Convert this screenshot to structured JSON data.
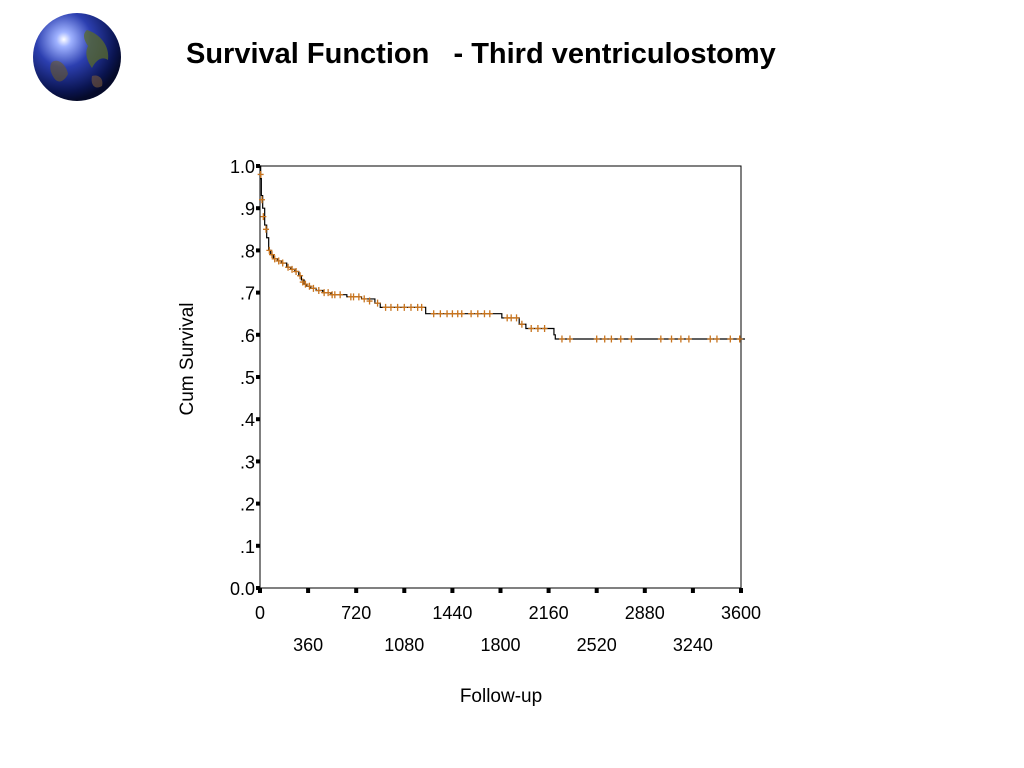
{
  "slide": {
    "title": "Survival Function   - Third ventriculostomy",
    "logo_icon": "globe-icon"
  },
  "chart_data": {
    "type": "line",
    "title": "Survival Function   - Third ventriculostomy",
    "xlabel": "Follow-up",
    "ylabel": "Cum Survival",
    "xlim": [
      0,
      3600
    ],
    "ylim": [
      0,
      1.0
    ],
    "x_ticks": [
      0,
      360,
      720,
      1080,
      1440,
      1800,
      2160,
      2520,
      2880,
      3240,
      3600
    ],
    "x_tick_labels": [
      "0",
      "360",
      "720",
      "1080",
      "1440",
      "1800",
      "2160",
      "2520",
      "2880",
      "3240",
      "3600"
    ],
    "y_ticks": [
      0,
      0.1,
      0.2,
      0.3,
      0.4,
      0.5,
      0.6,
      0.7,
      0.8,
      0.9,
      1.0
    ],
    "y_tick_labels": [
      "0.0",
      ".1",
      ".2",
      ".3",
      ".4",
      ".5",
      ".6",
      ".7",
      ".8",
      ".9",
      "1.0"
    ],
    "grid": false,
    "line_color": "#000000",
    "censor_color": "#c8741e",
    "series": [
      {
        "step_points": [
          [
            0,
            1.0
          ],
          [
            5,
            0.97
          ],
          [
            10,
            0.93
          ],
          [
            20,
            0.9
          ],
          [
            35,
            0.86
          ],
          [
            50,
            0.83
          ],
          [
            65,
            0.8
          ],
          [
            80,
            0.79
          ],
          [
            100,
            0.78
          ],
          [
            130,
            0.775
          ],
          [
            160,
            0.77
          ],
          [
            200,
            0.76
          ],
          [
            230,
            0.755
          ],
          [
            260,
            0.75
          ],
          [
            290,
            0.74
          ],
          [
            310,
            0.73
          ],
          [
            330,
            0.72
          ],
          [
            350,
            0.715
          ],
          [
            380,
            0.71
          ],
          [
            420,
            0.705
          ],
          [
            470,
            0.7
          ],
          [
            530,
            0.695
          ],
          [
            650,
            0.69
          ],
          [
            760,
            0.685
          ],
          [
            860,
            0.675
          ],
          [
            900,
            0.665
          ],
          [
            1240,
            0.65
          ],
          [
            1810,
            0.64
          ],
          [
            1940,
            0.625
          ],
          [
            1990,
            0.615
          ],
          [
            2200,
            0.6
          ],
          [
            2210,
            0.59
          ],
          [
            3630,
            0.59
          ]
        ],
        "censored": [
          [
            5,
            0.98
          ],
          [
            15,
            0.92
          ],
          [
            25,
            0.88
          ],
          [
            45,
            0.85
          ],
          [
            70,
            0.8
          ],
          [
            90,
            0.79
          ],
          [
            110,
            0.78
          ],
          [
            140,
            0.775
          ],
          [
            170,
            0.77
          ],
          [
            210,
            0.76
          ],
          [
            240,
            0.755
          ],
          [
            270,
            0.75
          ],
          [
            300,
            0.74
          ],
          [
            320,
            0.725
          ],
          [
            340,
            0.72
          ],
          [
            370,
            0.715
          ],
          [
            400,
            0.71
          ],
          [
            440,
            0.705
          ],
          [
            480,
            0.7
          ],
          [
            510,
            0.7
          ],
          [
            540,
            0.695
          ],
          [
            560,
            0.695
          ],
          [
            600,
            0.695
          ],
          [
            680,
            0.69
          ],
          [
            700,
            0.69
          ],
          [
            740,
            0.69
          ],
          [
            780,
            0.685
          ],
          [
            820,
            0.68
          ],
          [
            880,
            0.675
          ],
          [
            940,
            0.665
          ],
          [
            980,
            0.665
          ],
          [
            1030,
            0.665
          ],
          [
            1080,
            0.665
          ],
          [
            1130,
            0.665
          ],
          [
            1180,
            0.665
          ],
          [
            1210,
            0.665
          ],
          [
            1300,
            0.65
          ],
          [
            1350,
            0.65
          ],
          [
            1400,
            0.65
          ],
          [
            1440,
            0.65
          ],
          [
            1480,
            0.65
          ],
          [
            1510,
            0.65
          ],
          [
            1580,
            0.65
          ],
          [
            1630,
            0.65
          ],
          [
            1680,
            0.65
          ],
          [
            1720,
            0.65
          ],
          [
            1850,
            0.64
          ],
          [
            1880,
            0.64
          ],
          [
            1920,
            0.64
          ],
          [
            1960,
            0.625
          ],
          [
            2030,
            0.615
          ],
          [
            2080,
            0.615
          ],
          [
            2130,
            0.615
          ],
          [
            2260,
            0.59
          ],
          [
            2320,
            0.59
          ],
          [
            2520,
            0.59
          ],
          [
            2580,
            0.59
          ],
          [
            2630,
            0.59
          ],
          [
            2700,
            0.59
          ],
          [
            2780,
            0.59
          ],
          [
            3000,
            0.59
          ],
          [
            3080,
            0.59
          ],
          [
            3150,
            0.59
          ],
          [
            3210,
            0.59
          ],
          [
            3370,
            0.59
          ],
          [
            3420,
            0.59
          ],
          [
            3520,
            0.59
          ],
          [
            3590,
            0.59
          ]
        ]
      }
    ]
  }
}
